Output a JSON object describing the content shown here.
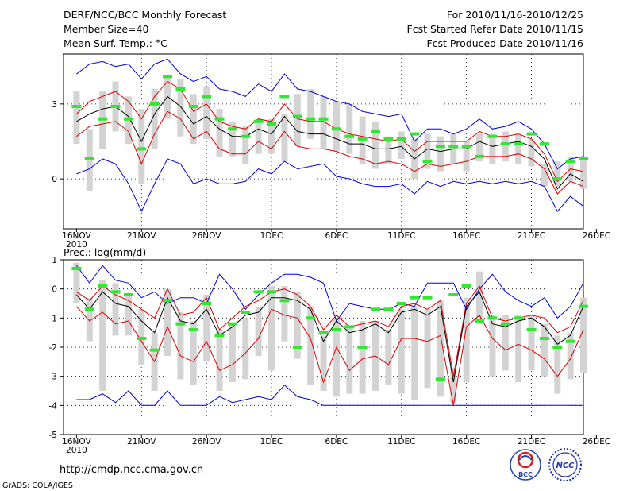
{
  "header": {
    "left_line1": "DERF/NCC/BCC Monthly Forecast",
    "left_line2": "Member Size=40",
    "left_line3": "Mean Surf. Temp.: °C",
    "right_line1": "For 2010/11/16-2010/12/25",
    "right_line2": "Fcst Started Refer Date 2010/11/15",
    "right_line3": "Fcst Produced Date 2010/11/16"
  },
  "x_axis": {
    "tick_labels": [
      "16NOV",
      "21NOV",
      "26NOV",
      "1DEC",
      "6DEC",
      "11DEC",
      "16DEC",
      "21DEC",
      "26DEC"
    ],
    "year_label": "2010"
  },
  "footer": {
    "url": "http://cmdp.ncc.cma.gov.cn",
    "grads_credit": "GrADS: COLA/IGES",
    "logo1_text": "BCC",
    "logo2_text": "NCC"
  },
  "colors": {
    "box": "#d3d3d3",
    "mean_marker": "#32e632",
    "envelope": "#0000dd",
    "inner": "#dd0000",
    "median": "#000000"
  },
  "chart_data": [
    {
      "type": "line",
      "title": "Mean Surf. Temp.: °C",
      "days": 40,
      "ylim": [
        -2,
        5
      ],
      "yticks": [
        0,
        3
      ],
      "ytick_labels": [
        "0",
        "3"
      ],
      "series": [
        {
          "name": "max",
          "values": [
            0.2,
            0.4,
            0.8,
            0.6,
            -0.2,
            -1.3,
            -0.2,
            0.8,
            0.6,
            -0.2,
            0,
            -0.2,
            -0.2,
            -0.1,
            0.4,
            0.2,
            0.7,
            0.4,
            0.5,
            0.6,
            0.1,
            0,
            -0.2,
            -0.3,
            -0.3,
            -0.2,
            -0.6,
            -0.1,
            -0.3,
            -0.1,
            -0.2,
            -0.1,
            -0.2,
            -0.1,
            -0.2,
            -0.1,
            -0.3,
            -1.3,
            -0.7,
            -1.1
          ]
        },
        {
          "name": "min",
          "values": [
            4.2,
            4.6,
            4.7,
            4.5,
            4.6,
            4.0,
            4.6,
            4.8,
            4.2,
            3.9,
            4.1,
            3.6,
            3.5,
            3.3,
            3.8,
            3.5,
            4.2,
            3.6,
            3.5,
            3.3,
            3.1,
            3.0,
            2.7,
            2.6,
            2.5,
            2.6,
            1.5,
            2.0,
            2.0,
            1.8,
            2.0,
            2.4,
            2.0,
            2.1,
            2.3,
            2.0,
            1.4,
            0.4,
            0.8,
            0.9
          ]
        },
        {
          "name": "pct80",
          "values": [
            2.6,
            3.1,
            3.3,
            3.5,
            3.1,
            2.4,
            3.3,
            3.9,
            3.6,
            2.7,
            3.0,
            2.3,
            2.1,
            2.0,
            2.4,
            2.3,
            3.0,
            2.4,
            2.3,
            2.3,
            2.0,
            1.8,
            1.7,
            1.6,
            1.5,
            1.6,
            1.1,
            1.5,
            1.5,
            1.5,
            1.5,
            1.9,
            1.7,
            1.7,
            1.8,
            1.6,
            1.0,
            -0.1,
            0.4,
            0.3
          ]
        },
        {
          "name": "median",
          "values": [
            2.3,
            2.6,
            2.8,
            2.9,
            2.5,
            1.5,
            2.6,
            3.3,
            2.9,
            2.2,
            2.5,
            2.0,
            1.7,
            1.7,
            2.0,
            1.8,
            2.5,
            1.9,
            1.8,
            1.8,
            1.6,
            1.4,
            1.4,
            1.2,
            1.2,
            1.3,
            0.8,
            1.2,
            1.1,
            1.2,
            1.2,
            1.5,
            1.3,
            1.4,
            1.5,
            1.3,
            0.8,
            -0.4,
            0.2,
            -0.1
          ]
        },
        {
          "name": "pct20",
          "values": [
            1.7,
            2.1,
            2.2,
            2.3,
            1.9,
            0.6,
            1.8,
            2.7,
            2.4,
            1.6,
            1.9,
            1.2,
            1.0,
            1.0,
            1.5,
            1.2,
            1.9,
            1.3,
            1.2,
            1.2,
            1.1,
            0.9,
            0.8,
            0.6,
            0.7,
            0.6,
            0.3,
            0.6,
            0.5,
            0.6,
            0.7,
            0.9,
            0.9,
            0.9,
            1.0,
            0.8,
            0.4,
            -0.6,
            -0.1,
            -0.3
          ]
        }
      ],
      "boxes": [
        {
          "day": 1,
          "low": 1.4,
          "high": 3.5
        },
        {
          "day": 2,
          "low": -0.5,
          "high": 2.0
        },
        {
          "day": 3,
          "low": 1.2,
          "high": 3.5
        },
        {
          "day": 4,
          "low": 1.9,
          "high": 3.9
        },
        {
          "day": 5,
          "low": 1.4,
          "high": 3.3
        },
        {
          "day": 6,
          "low": -0.2,
          "high": 2.8
        },
        {
          "day": 7,
          "low": 1.2,
          "high": 3.6
        },
        {
          "day": 8,
          "low": 2.4,
          "high": 4.1
        },
        {
          "day": 9,
          "low": 1.7,
          "high": 4.0
        },
        {
          "day": 10,
          "low": 1.4,
          "high": 3.4
        },
        {
          "day": 11,
          "low": 1.6,
          "high": 3.7
        },
        {
          "day": 12,
          "low": 0.9,
          "high": 2.8
        },
        {
          "day": 13,
          "low": 0.9,
          "high": 2.3
        },
        {
          "day": 14,
          "low": 0.6,
          "high": 2.1
        },
        {
          "day": 15,
          "low": 1.0,
          "high": 2.4
        },
        {
          "day": 16,
          "low": 1.0,
          "high": 2.4
        },
        {
          "day": 17,
          "low": 0.7,
          "high": 2.6
        },
        {
          "day": 18,
          "low": 1.3,
          "high": 3.4
        },
        {
          "day": 19,
          "low": 1.6,
          "high": 3.6
        },
        {
          "day": 20,
          "low": 1.2,
          "high": 3.3
        },
        {
          "day": 21,
          "low": 1.1,
          "high": 3.1
        },
        {
          "day": 22,
          "low": 1.0,
          "high": 3.0
        },
        {
          "day": 23,
          "low": 0.6,
          "high": 2.5
        },
        {
          "day": 24,
          "low": 0.4,
          "high": 2.3
        },
        {
          "day": 25,
          "low": 0.6,
          "high": 1.7
        },
        {
          "day": 26,
          "low": 0.8,
          "high": 1.9
        },
        {
          "day": 27,
          "low": 0.0,
          "high": 1.6
        },
        {
          "day": 28,
          "low": 0.4,
          "high": 1.8
        },
        {
          "day": 29,
          "low": 0.3,
          "high": 1.7
        },
        {
          "day": 30,
          "low": 0.6,
          "high": 1.8
        },
        {
          "day": 31,
          "low": 0.3,
          "high": 1.5
        },
        {
          "day": 32,
          "low": 0.7,
          "high": 1.8
        },
        {
          "day": 33,
          "low": 0.6,
          "high": 1.8
        },
        {
          "day": 34,
          "low": 0.7,
          "high": 1.9
        },
        {
          "day": 35,
          "low": 0.6,
          "high": 1.8
        },
        {
          "day": 36,
          "low": 0.5,
          "high": 1.6
        },
        {
          "day": 37,
          "low": -0.3,
          "high": 0.6
        },
        {
          "day": 38,
          "low": -0.3,
          "high": 0.7
        },
        {
          "day": 39,
          "low": -0.1,
          "high": 0.9
        },
        {
          "day": 40,
          "low": -0.4,
          "high": 0.8
        }
      ],
      "markers": [
        2.9,
        0.8,
        2.4,
        2.9,
        2.4,
        1.2,
        3.0,
        4.1,
        3.6,
        2.9,
        3.3,
        2.4,
        2.0,
        1.7,
        2.3,
        2.2,
        3.3,
        2.5,
        2.4,
        2.4,
        2.0,
        1.7,
        1.6,
        1.9,
        1.6,
        1.6,
        1.8,
        0.7,
        1.3,
        1.3,
        1.3,
        0.9,
        1.7,
        1.4,
        1.4,
        1.8,
        1.4,
        0.0,
        0.7,
        0.8
      ]
    },
    {
      "type": "line",
      "title": "Prec.: log(mm/d)",
      "days": 40,
      "ylim": [
        -5,
        1
      ],
      "yticks": [
        -5,
        -4,
        -3,
        -2,
        -1,
        0,
        1
      ],
      "ytick_labels": [
        "-5",
        "-4",
        "-3",
        "-2",
        "-1",
        "0",
        "1"
      ],
      "series": [
        {
          "name": "max",
          "values": [
            0.8,
            0.2,
            0.8,
            0.3,
            0.2,
            -0.3,
            -0.1,
            -0.5,
            -0.3,
            -0.3,
            -0.5,
            0.5,
            0,
            -0.7,
            -0.2,
            0.2,
            0.5,
            0.5,
            0.4,
            0.2,
            -1.1,
            -0.5,
            -0.6,
            -0.7,
            -0.7,
            -0.5,
            -0.6,
            0.2,
            0.2,
            0.2,
            -0.7,
            0,
            0.5,
            -0.1,
            -0.4,
            -0.6,
            -0.3,
            -1.0,
            -0.6,
            0.2
          ]
        },
        {
          "name": "min",
          "values": [
            -3.8,
            -3.8,
            -3.6,
            -3.9,
            -3.5,
            -4.0,
            -4.0,
            -3.5,
            -4.0,
            -4.0,
            -4.0,
            -3.7,
            -3.9,
            -3.8,
            -3.7,
            -3.8,
            -3.3,
            -3.7,
            -3.8,
            -4.0,
            -4.0,
            -4.0,
            -4.0,
            -4.0,
            -4.0,
            -4.0,
            -4.0,
            -4.0,
            -4.0,
            -4.0,
            -4.0,
            -4.0,
            -4.0,
            -4.0,
            -4.0,
            -4.0,
            -4.0,
            -4.0,
            -4.0,
            -4.0
          ]
        },
        {
          "name": "pct80",
          "values": [
            -0.1,
            -0.4,
            0.1,
            -0.2,
            -0.4,
            -0.7,
            -1.0,
            0.0,
            -0.9,
            -0.8,
            -0.3,
            -1.4,
            -1.0,
            -0.6,
            -0.4,
            -0.1,
            0,
            -0.2,
            -0.6,
            -1.4,
            -0.9,
            -1.3,
            -1.2,
            -1.1,
            -1.3,
            -0.6,
            -0.5,
            -0.7,
            -0.4,
            -3.0,
            -0.5,
            0.1,
            -1.0,
            -1.1,
            -1.0,
            -0.9,
            -1.0,
            -1.5,
            -1.3,
            -0.4
          ]
        },
        {
          "name": "median",
          "values": [
            -0.2,
            -0.7,
            -0.1,
            -0.5,
            -0.6,
            -1.1,
            -1.5,
            -0.3,
            -1.1,
            -1.2,
            -0.7,
            -1.6,
            -1.3,
            -0.9,
            -0.8,
            -0.3,
            -0.3,
            -0.4,
            -0.7,
            -1.8,
            -1.1,
            -1.5,
            -1.4,
            -1.2,
            -1.5,
            -0.8,
            -0.7,
            -0.9,
            -0.6,
            -3.2,
            -0.6,
            -0.1,
            -1.2,
            -1.3,
            -1.1,
            -1.0,
            -1.3,
            -1.9,
            -1.6,
            -0.6
          ]
        },
        {
          "name": "pct20",
          "values": [
            -0.6,
            -1.1,
            -0.8,
            -1.2,
            -1.1,
            -1.8,
            -2.5,
            -1.3,
            -2.3,
            -2.5,
            -1.8,
            -2.8,
            -2.6,
            -2.2,
            -1.7,
            -0.7,
            -0.9,
            -1.0,
            -1.7,
            -3.2,
            -2.0,
            -2.8,
            -2.4,
            -2.3,
            -2.6,
            -1.7,
            -1.7,
            -1.8,
            -1.6,
            -4.0,
            -1.3,
            -0.9,
            -1.7,
            -2.1,
            -1.9,
            -2.1,
            -2.4,
            -3.0,
            -2.4,
            -1.4
          ]
        }
      ],
      "boxes": [
        {
          "day": 1,
          "low": -0.5,
          "high": 0.9
        },
        {
          "day": 2,
          "low": -1.8,
          "high": -0.3
        },
        {
          "day": 3,
          "low": -3.5,
          "high": 0.3
        },
        {
          "day": 4,
          "low": -1.6,
          "high": 0.2
        },
        {
          "day": 5,
          "low": -1.6,
          "high": -0.2
        },
        {
          "day": 6,
          "low": -2.6,
          "high": -0.7
        },
        {
          "day": 7,
          "low": -3.5,
          "high": -1.5
        },
        {
          "day": 8,
          "low": -2.3,
          "high": 0.0
        },
        {
          "day": 9,
          "low": -3.1,
          "high": -0.8
        },
        {
          "day": 10,
          "low": -3.3,
          "high": -1.1
        },
        {
          "day": 11,
          "low": -2.5,
          "high": -0.2
        },
        {
          "day": 12,
          "low": -3.5,
          "high": -1.4
        },
        {
          "day": 13,
          "low": -3.2,
          "high": -1.2
        },
        {
          "day": 14,
          "low": -3.1,
          "high": -1.0
        },
        {
          "day": 15,
          "low": -2.3,
          "high": -0.6
        },
        {
          "day": 16,
          "low": -2.8,
          "high": 0.1
        },
        {
          "day": 17,
          "low": -1.8,
          "high": 0.1
        },
        {
          "day": 18,
          "low": -2.4,
          "high": -0.1
        },
        {
          "day": 19,
          "low": -3.3,
          "high": -0.6
        },
        {
          "day": 20,
          "low": -3.5,
          "high": -1.6
        },
        {
          "day": 21,
          "low": -3.7,
          "high": -1.0
        },
        {
          "day": 22,
          "low": -3.6,
          "high": -1.3
        },
        {
          "day": 23,
          "low": -3.6,
          "high": -1.1
        },
        {
          "day": 24,
          "low": -3.5,
          "high": -1.1
        },
        {
          "day": 25,
          "low": -3.3,
          "high": -1.4
        },
        {
          "day": 26,
          "low": -3.6,
          "high": -0.7
        },
        {
          "day": 27,
          "low": -3.8,
          "high": -0.6
        },
        {
          "day": 28,
          "low": -3.4,
          "high": -0.7
        },
        {
          "day": 29,
          "low": -3.7,
          "high": -0.4
        },
        {
          "day": 30,
          "low": -3.9,
          "high": -2.7
        },
        {
          "day": 31,
          "low": -3.2,
          "high": -0.3
        },
        {
          "day": 32,
          "low": -1.0,
          "high": 0.6
        },
        {
          "day": 33,
          "low": -3.0,
          "high": -0.9
        },
        {
          "day": 34,
          "low": -2.8,
          "high": -0.9
        },
        {
          "day": 35,
          "low": -3.2,
          "high": -0.9
        },
        {
          "day": 36,
          "low": -2.8,
          "high": -0.9
        },
        {
          "day": 37,
          "low": -3.0,
          "high": -1.2
        },
        {
          "day": 38,
          "low": -3.6,
          "high": -1.6
        },
        {
          "day": 39,
          "low": -3.1,
          "high": -1.5
        },
        {
          "day": 40,
          "low": -2.9,
          "high": -0.3
        }
      ],
      "markers": [
        0.7,
        -0.7,
        0.1,
        -0.1,
        -0.2,
        -1.7,
        -2.1,
        -0.4,
        -1.2,
        -1.4,
        -0.5,
        -1.6,
        -1.2,
        -0.8,
        -0.1,
        -0.1,
        -0.4,
        -2.0,
        -1.0,
        -1.5,
        -1.4,
        -1.3,
        -2.0,
        -0.7,
        -0.7,
        -0.5,
        -0.3,
        -0.3,
        -3.1,
        -0.2,
        0.1,
        -1.1,
        -1.0,
        -1.2,
        -1.0,
        -1.4,
        -1.7,
        -2.0,
        -1.8,
        -0.6
      ]
    }
  ]
}
